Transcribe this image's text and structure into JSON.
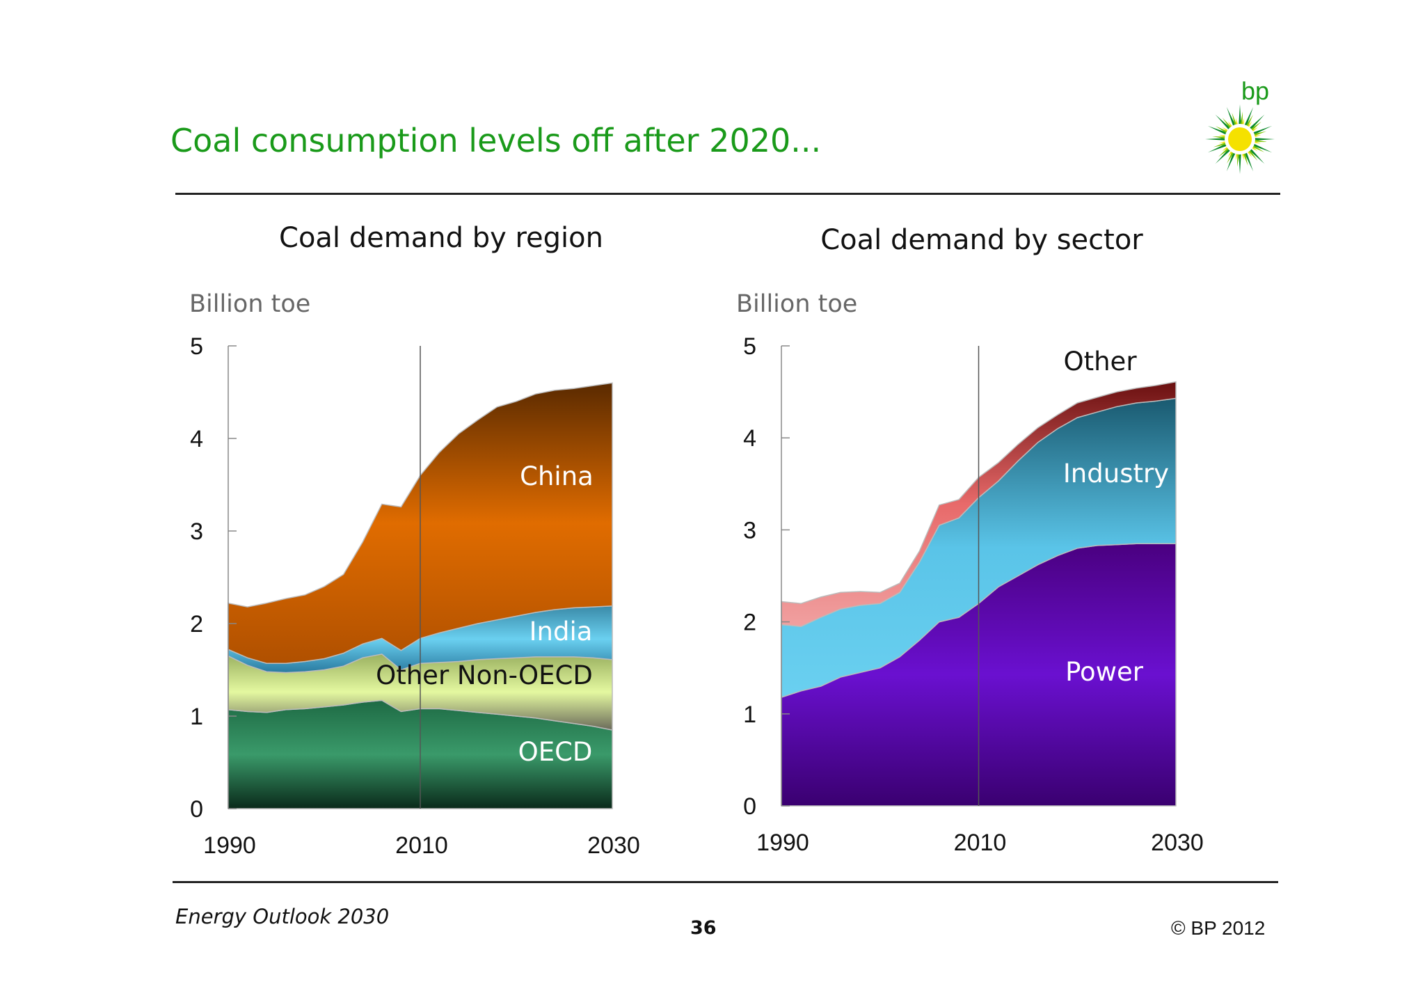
{
  "title": "Coal consumption levels off after 2020...",
  "logo": {
    "text": "bp",
    "brand_green": "#1a9a1a",
    "brand_yellow": "#f5e100"
  },
  "footer": {
    "source": "Energy Outlook 2030",
    "page_number": "36",
    "copyright": "© BP 2012"
  },
  "chart_data": [
    {
      "type": "area",
      "stacked": true,
      "title": "Coal demand by region",
      "ylabel": "Billion toe",
      "ylim": [
        0,
        5
      ],
      "yticks": [
        0,
        1,
        2,
        3,
        4,
        5
      ],
      "xticks": [
        1990,
        2010,
        2030
      ],
      "xlim": [
        1990,
        2030
      ],
      "divider_year": 2010,
      "x": [
        1990,
        1992,
        1994,
        1996,
        1998,
        2000,
        2002,
        2004,
        2006,
        2008,
        2010,
        2012,
        2014,
        2016,
        2018,
        2020,
        2022,
        2024,
        2026,
        2028,
        2030
      ],
      "series": [
        {
          "name": "OECD",
          "color": "#2e8a5a",
          "values": [
            1.07,
            1.05,
            1.04,
            1.07,
            1.08,
            1.1,
            1.12,
            1.15,
            1.17,
            1.05,
            1.08,
            1.08,
            1.06,
            1.04,
            1.02,
            1.0,
            0.98,
            0.95,
            0.92,
            0.89,
            0.85
          ]
        },
        {
          "name": "Other Non-OECD",
          "color": "#d4f08a",
          "values": [
            0.58,
            0.5,
            0.44,
            0.4,
            0.4,
            0.4,
            0.42,
            0.48,
            0.5,
            0.45,
            0.49,
            0.5,
            0.53,
            0.57,
            0.6,
            0.63,
            0.66,
            0.69,
            0.72,
            0.74,
            0.76
          ]
        },
        {
          "name": "India",
          "color": "#5ec8e8",
          "values": [
            0.07,
            0.08,
            0.09,
            0.1,
            0.11,
            0.12,
            0.14,
            0.15,
            0.17,
            0.21,
            0.27,
            0.32,
            0.36,
            0.39,
            0.42,
            0.45,
            0.48,
            0.51,
            0.53,
            0.55,
            0.58
          ]
        },
        {
          "name": "China",
          "color": "#d86a00",
          "values": [
            0.5,
            0.55,
            0.65,
            0.7,
            0.72,
            0.78,
            0.85,
            1.1,
            1.45,
            1.55,
            1.76,
            1.95,
            2.1,
            2.2,
            2.3,
            2.32,
            2.36,
            2.37,
            2.37,
            2.39,
            2.41
          ]
        }
      ]
    },
    {
      "type": "area",
      "stacked": true,
      "title": "Coal demand by sector",
      "ylabel": "Billion toe",
      "ylim": [
        0,
        5
      ],
      "yticks": [
        0,
        1,
        2,
        3,
        4,
        5
      ],
      "xticks": [
        1990,
        2010,
        2030
      ],
      "xlim": [
        1990,
        2030
      ],
      "divider_year": 2010,
      "x": [
        1990,
        1992,
        1994,
        1996,
        1998,
        2000,
        2002,
        2004,
        2006,
        2008,
        2010,
        2012,
        2014,
        2016,
        2018,
        2020,
        2022,
        2024,
        2026,
        2028,
        2030
      ],
      "series": [
        {
          "name": "Power",
          "color": "#6a10c8",
          "values": [
            1.18,
            1.25,
            1.3,
            1.4,
            1.45,
            1.5,
            1.62,
            1.8,
            2.0,
            2.05,
            2.2,
            2.38,
            2.5,
            2.62,
            2.72,
            2.8,
            2.83,
            2.84,
            2.85,
            2.85,
            2.85
          ]
        },
        {
          "name": "Industry",
          "color": "#5ec8e8",
          "values": [
            0.79,
            0.7,
            0.75,
            0.74,
            0.73,
            0.7,
            0.7,
            0.85,
            1.05,
            1.08,
            1.15,
            1.15,
            1.25,
            1.33,
            1.38,
            1.42,
            1.45,
            1.5,
            1.53,
            1.55,
            1.58
          ]
        },
        {
          "name": "Other",
          "color": "#c43a3a",
          "values": [
            0.25,
            0.25,
            0.22,
            0.18,
            0.15,
            0.12,
            0.1,
            0.12,
            0.22,
            0.2,
            0.22,
            0.2,
            0.18,
            0.16,
            0.15,
            0.16,
            0.16,
            0.16,
            0.16,
            0.17,
            0.18
          ]
        }
      ]
    }
  ]
}
